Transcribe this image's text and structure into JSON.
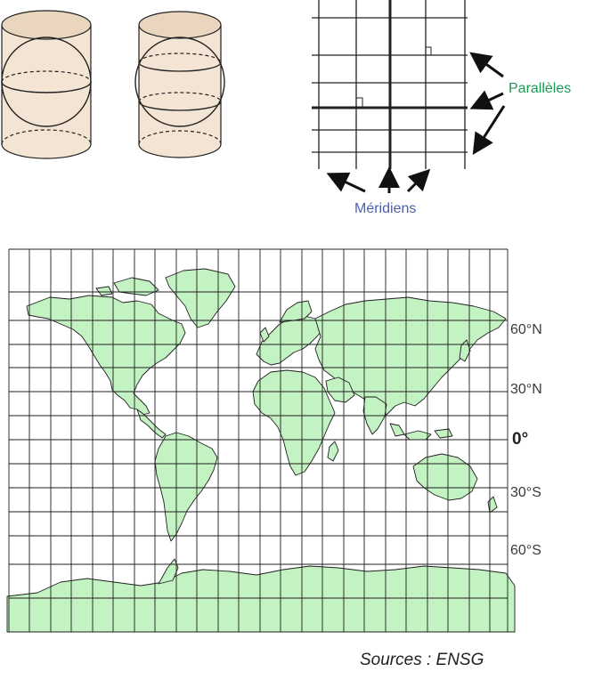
{
  "labels": {
    "paralleles": "Parallèles",
    "meridiens": "Méridiens"
  },
  "latitudes": [
    "60°N",
    "30°N",
    "0°",
    "30°S",
    "60°S"
  ],
  "source": "Sources : ENSG",
  "colors": {
    "land": "#c3f2c3",
    "cylinder": "#f3e4d3",
    "cylinder_top": "#ead6bf",
    "grid": "#202020"
  }
}
